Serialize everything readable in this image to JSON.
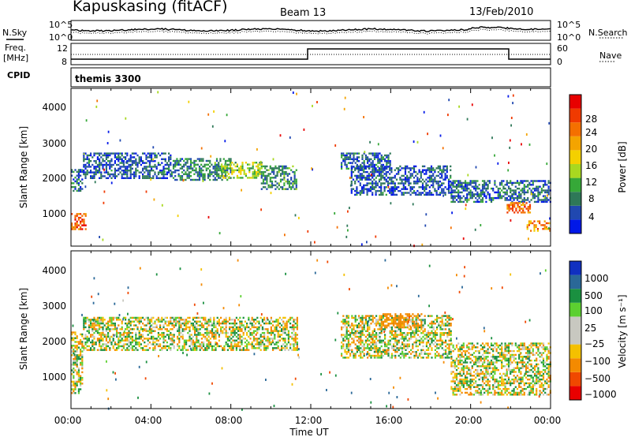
{
  "header": {
    "title": "Kapuskasing (fitACF)",
    "beam": "Beam 13",
    "date": "13/Feb/2010"
  },
  "side_labels": {
    "nsky": "N.Sky",
    "freq": "Freq.",
    "freq_unit": "[MHz]",
    "cpid": "CPID",
    "nsearch": "N.Search",
    "nave": "Nave"
  },
  "cpid_text": "themis 3300",
  "strip_ticks": {
    "noise_top_left": "10^5",
    "noise_bot_left": "10^0",
    "noise_top_right": "10^5",
    "noise_bot_right": "10^0",
    "freq_top": "12",
    "freq_bot": "8",
    "nave_top": "60",
    "nave_bot": "0"
  },
  "xaxis": {
    "label": "Time UT",
    "ticks": [
      "00:00",
      "04:00",
      "08:00",
      "12:00",
      "16:00",
      "20:00",
      "00:00"
    ]
  },
  "yaxis": {
    "label": "Slant Range [km]",
    "ticks": [
      "1000",
      "2000",
      "3000",
      "4000"
    ]
  },
  "power_bar": {
    "label": "Power [dB]",
    "ticks": [
      "4",
      "8",
      "12",
      "16",
      "20",
      "24",
      "28"
    ],
    "colors": [
      "#0018e8",
      "#2048b0",
      "#2e7858",
      "#36a838",
      "#a8d820",
      "#f4d000",
      "#f4a400",
      "#f47000",
      "#f03a00",
      "#e80000"
    ]
  },
  "velocity_bar": {
    "label": "Velocity [m s⁻¹]",
    "ticks": [
      "1000",
      "500",
      "100",
      "25",
      "−25",
      "−100",
      "−500",
      "−1000"
    ],
    "colors": [
      "#1030c0",
      "#2a6898",
      "#1a9040",
      "#5cd030",
      "#c8c8c0",
      "#c8c8c0",
      "#f4c000",
      "#f48a00",
      "#f04800",
      "#e80000"
    ]
  },
  "chart_data": [
    {
      "type": "heatmap",
      "title": "Power",
      "x_unit": "hours UT",
      "y_unit": "km",
      "xlim": [
        0,
        24
      ],
      "ylim": [
        200,
        4500
      ],
      "colorbar": {
        "label": "Power [dB]",
        "range": [
          0,
          32
        ]
      },
      "echo_bands": [
        {
          "t_start": 0.0,
          "t_end": 0.6,
          "range_low": 1700,
          "range_high": 2300,
          "value": 6
        },
        {
          "t_start": 0.0,
          "t_end": 0.7,
          "range_low": 650,
          "range_high": 1100,
          "value": 26
        },
        {
          "t_start": 0.6,
          "t_end": 5.0,
          "range_low": 2050,
          "range_high": 2750,
          "value": 5
        },
        {
          "t_start": 5.0,
          "t_end": 8.0,
          "range_low": 2000,
          "range_high": 2600,
          "value": 8
        },
        {
          "t_start": 7.5,
          "t_end": 9.5,
          "range_low": 2050,
          "range_high": 2500,
          "value": 14
        },
        {
          "t_start": 9.5,
          "t_end": 11.3,
          "range_low": 1750,
          "range_high": 2400,
          "value": 9
        },
        {
          "t_start": 13.5,
          "t_end": 16.0,
          "range_low": 2300,
          "range_high": 2750,
          "value": 6
        },
        {
          "t_start": 14.0,
          "t_end": 19.0,
          "range_low": 1600,
          "range_high": 2400,
          "value": 5
        },
        {
          "t_start": 19.0,
          "t_end": 24.0,
          "range_low": 1400,
          "range_high": 2000,
          "value": 6
        },
        {
          "t_start": 21.8,
          "t_end": 23.0,
          "range_low": 1100,
          "range_high": 1400,
          "value": 24
        },
        {
          "t_start": 22.8,
          "t_end": 24.0,
          "range_low": 600,
          "range_high": 900,
          "value": 22
        }
      ]
    },
    {
      "type": "heatmap",
      "title": "Velocity",
      "x_unit": "hours UT",
      "y_unit": "km",
      "xlim": [
        0,
        24
      ],
      "ylim": [
        200,
        4500
      ],
      "colorbar": {
        "label": "Velocity [m s⁻¹]",
        "range": [
          -1000,
          1000
        ]
      },
      "echo_bands": [
        {
          "t_start": 0.0,
          "t_end": 0.6,
          "range_low": 600,
          "range_high": 2300,
          "value": 0
        },
        {
          "t_start": 0.6,
          "t_end": 11.3,
          "range_low": 1800,
          "range_high": 2700,
          "value": 0
        },
        {
          "t_start": 13.5,
          "t_end": 19.0,
          "range_low": 1600,
          "range_high": 2750,
          "value": 0
        },
        {
          "t_start": 15.5,
          "t_end": 17.5,
          "range_low": 2400,
          "range_high": 2800,
          "value": -300
        },
        {
          "t_start": 19.0,
          "t_end": 24.0,
          "range_low": 600,
          "range_high": 2000,
          "value": 0
        }
      ]
    }
  ]
}
